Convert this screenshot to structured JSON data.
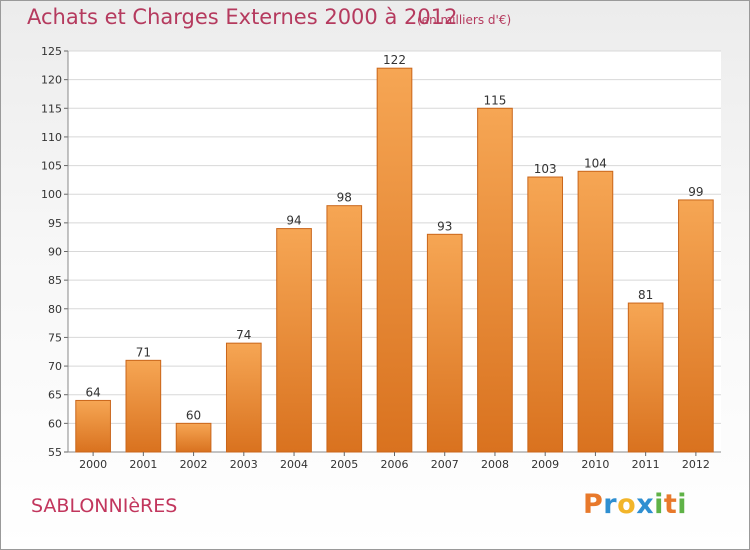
{
  "title": "Achats et Charges Externes 2000 à 2012",
  "subtitle": "(en milliers d'€)",
  "location": "SABLONNIèRES",
  "brand": {
    "letters": [
      "P",
      "r",
      "o",
      "x",
      "i",
      "t",
      "i"
    ],
    "colors": [
      "#e8792b",
      "#2f8fd1",
      "#f2b52a",
      "#2f8fd1",
      "#5fb247",
      "#e8792b",
      "#5fb247"
    ]
  },
  "colors": {
    "bar_fill_top": "#f6a654",
    "bar_fill_bottom": "#d9721f",
    "bar_stroke": "#c9661b",
    "grid": "#d8d8d8",
    "title": "#b53a5e"
  },
  "chart_data": {
    "type": "bar",
    "categories": [
      "2000",
      "2001",
      "2002",
      "2003",
      "2004",
      "2005",
      "2006",
      "2007",
      "2008",
      "2009",
      "2010",
      "2011",
      "2012"
    ],
    "values": [
      64,
      71,
      60,
      74,
      94,
      98,
      122,
      93,
      115,
      103,
      104,
      81,
      99
    ],
    "ylim": [
      55,
      125
    ],
    "yticks": [
      55,
      60,
      65,
      70,
      75,
      80,
      85,
      90,
      95,
      100,
      105,
      110,
      115,
      120,
      125
    ],
    "grid": true,
    "data_labels": true
  }
}
